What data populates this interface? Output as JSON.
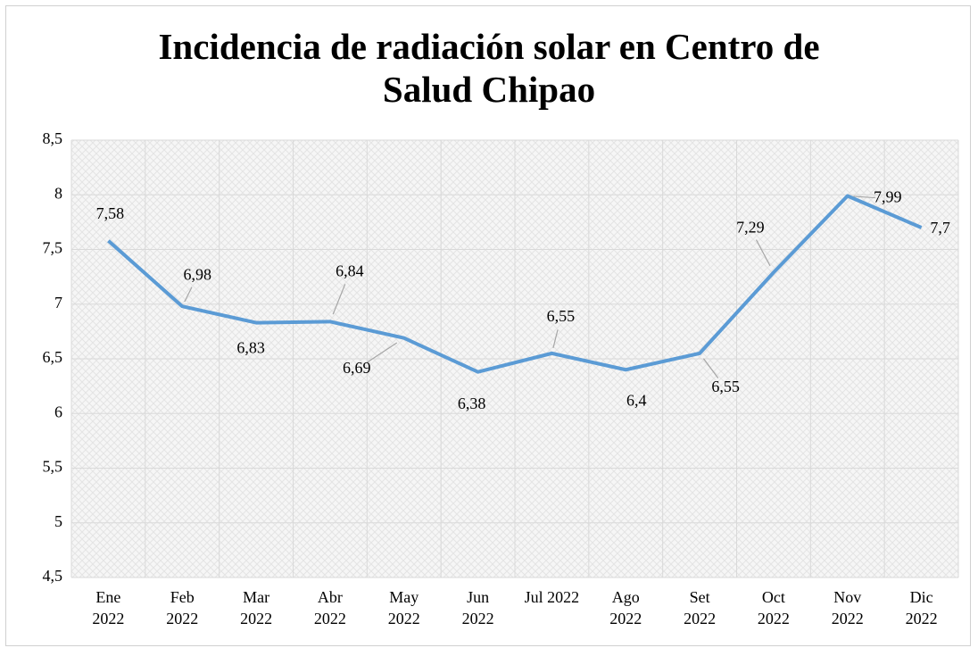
{
  "chart_data": {
    "type": "line",
    "title": "Incidencia de radiación solar en Centro de Salud Chipao",
    "categories": [
      "Ene\n2022",
      "Feb\n2022",
      "Mar\n2022",
      "Abr\n2022",
      "May\n2022",
      "Jun\n2022",
      "Jul 2022",
      "Ago\n2022",
      "Set\n2022",
      "Oct\n2022",
      "Nov\n2022",
      "Dic\n2022"
    ],
    "series": [
      {
        "name": "Incidencia de radiación solar",
        "color": "#5b9bd5",
        "values": [
          7.58,
          6.98,
          6.83,
          6.84,
          6.69,
          6.38,
          6.55,
          6.4,
          6.55,
          7.29,
          7.99,
          7.7
        ],
        "value_labels": [
          "7,58",
          "6,98",
          "6,83",
          "6,84",
          "6,69",
          "6,38",
          "6,55",
          "6,4",
          "6,55",
          "7,29",
          "7,99",
          "7,7"
        ]
      }
    ],
    "ylim": [
      4.5,
      8.5
    ],
    "yticks": [
      {
        "value": 4.5,
        "label": "4,5"
      },
      5,
      {
        "value": 5.5,
        "label": "5,5"
      },
      6,
      {
        "value": 6.5,
        "label": "6,5"
      },
      7,
      {
        "value": 7.5,
        "label": "7,5"
      },
      8,
      {
        "value": 8.5,
        "label": "8,5"
      }
    ],
    "grid": true
  }
}
